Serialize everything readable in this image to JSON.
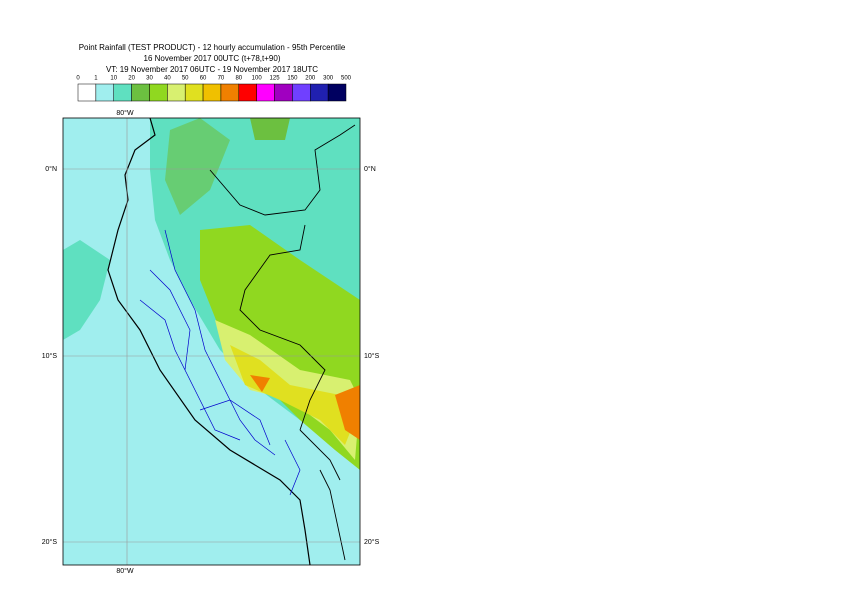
{
  "title": {
    "lines": [
      "Point Rainfall (TEST PRODUCT) - 12 hourly accumulation - 95th Percentile",
      "16 November 2017 00UTC (t+78,t+90)",
      "VT: 19 November 2017 06UTC - 19 November 2017 18UTC"
    ]
  },
  "legend": {
    "ticks": [
      0,
      1,
      10,
      20,
      30,
      40,
      50,
      60,
      70,
      80,
      100,
      125,
      150,
      200,
      300,
      500
    ],
    "colors": [
      "#ffffff",
      "#a0eeee",
      "#5fe0c0",
      "#6cc040",
      "#90d820",
      "#d8f070",
      "#e0e020",
      "#f0c000",
      "#f08000",
      "#ff0000",
      "#ff00ff",
      "#a000c0",
      "#7040ff",
      "#2020b0",
      "#000060"
    ]
  },
  "map": {
    "lon_labels": [
      "80°W"
    ],
    "lat_labels": [
      "0°N",
      "10°S",
      "20°S"
    ]
  }
}
